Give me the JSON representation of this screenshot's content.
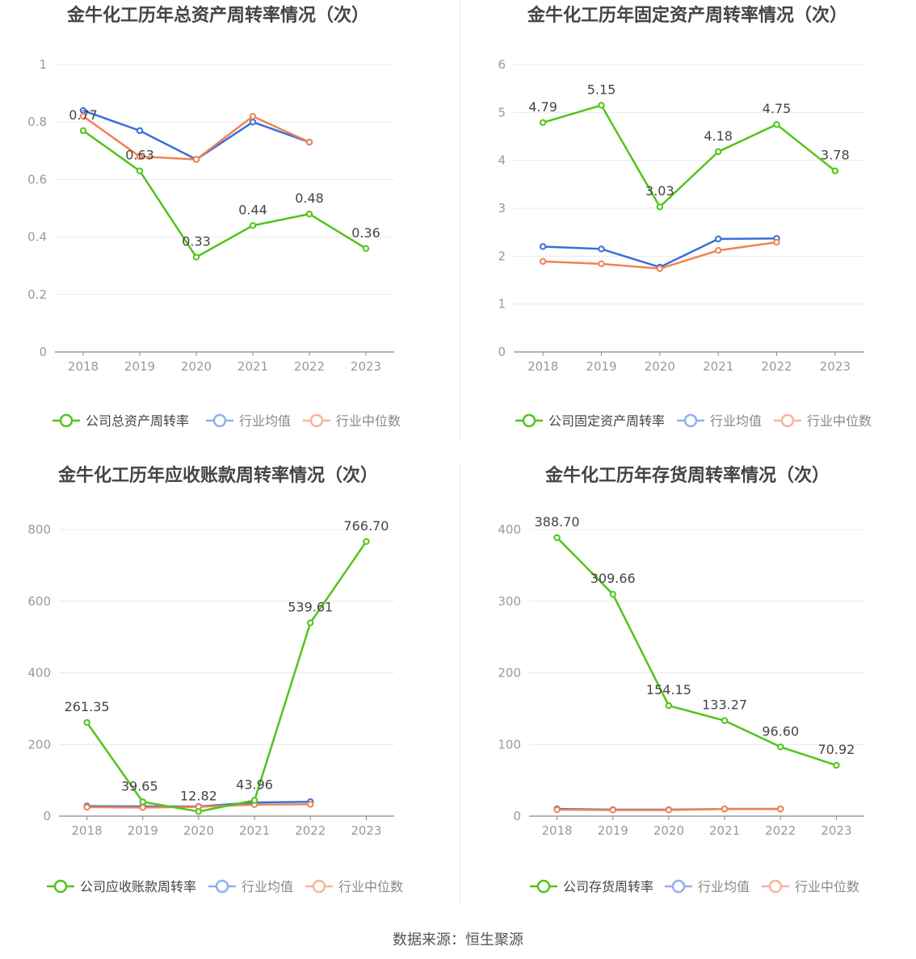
{
  "colors": {
    "company": "#52c41a",
    "industry_avg": "#3a6fd8",
    "industry_median": "#ef8354",
    "legend_avg": "#8fb0ec",
    "legend_median": "#f6b59a",
    "grid": "#e6e8f0",
    "axis": "#888888",
    "tick_text": "#999999",
    "label_text": "#444444",
    "title_text": "#444444"
  },
  "source": "数据来源：恒生聚源",
  "chart_data": [
    {
      "type": "line",
      "title": "金牛化工历年总资产周转率情况（次）",
      "categories": [
        "2018",
        "2019",
        "2020",
        "2021",
        "2022",
        "2023"
      ],
      "ylim": [
        0,
        1
      ],
      "yticks": [
        0,
        0.2,
        0.4,
        0.6,
        0.8,
        1
      ],
      "ytick_labels": [
        "0",
        "0.2",
        "0.4",
        "0.6",
        "0.8",
        "1"
      ],
      "grid": true,
      "legend_position": "bottom",
      "series": [
        {
          "name": "公司总资产周转率",
          "role": "company",
          "values": [
            0.77,
            0.63,
            0.33,
            0.44,
            0.48,
            0.36
          ],
          "labels": [
            "0.77",
            "0.63",
            "0.33",
            "0.44",
            "0.48",
            "0.36"
          ]
        },
        {
          "name": "行业均值",
          "role": "industry_avg",
          "values": [
            0.84,
            0.77,
            0.67,
            0.8,
            0.73,
            null
          ]
        },
        {
          "name": "行业中位数",
          "role": "industry_median",
          "values": [
            0.82,
            0.68,
            0.67,
            0.82,
            0.73,
            null
          ]
        }
      ]
    },
    {
      "type": "line",
      "title": "金牛化工历年固定资产周转率情况（次）",
      "categories": [
        "2018",
        "2019",
        "2020",
        "2021",
        "2022",
        "2023"
      ],
      "ylim": [
        0,
        6
      ],
      "yticks": [
        0,
        1,
        2,
        3,
        4,
        5,
        6
      ],
      "ytick_labels": [
        "0",
        "1",
        "2",
        "3",
        "4",
        "5",
        "6"
      ],
      "grid": true,
      "legend_position": "bottom",
      "series": [
        {
          "name": "公司固定资产周转率",
          "role": "company",
          "values": [
            4.79,
            5.15,
            3.03,
            4.18,
            4.75,
            3.78
          ],
          "labels": [
            "4.79",
            "5.15",
            "3.03",
            "4.18",
            "4.75",
            "3.78"
          ]
        },
        {
          "name": "行业均值",
          "role": "industry_avg",
          "values": [
            2.2,
            2.15,
            1.77,
            2.36,
            2.37,
            null
          ]
        },
        {
          "name": "行业中位数",
          "role": "industry_median",
          "values": [
            1.89,
            1.84,
            1.74,
            2.12,
            2.29,
            null
          ]
        }
      ]
    },
    {
      "type": "line",
      "title": "金牛化工历年应收账款周转率情况（次）",
      "categories": [
        "2018",
        "2019",
        "2020",
        "2021",
        "2022",
        "2023"
      ],
      "ylim": [
        0,
        800
      ],
      "yticks": [
        0,
        200,
        400,
        600,
        800
      ],
      "ytick_labels": [
        "0",
        "200",
        "400",
        "600",
        "800"
      ],
      "grid": true,
      "legend_position": "bottom",
      "series": [
        {
          "name": "公司应收账款周转率",
          "role": "company",
          "values": [
            261.35,
            39.65,
            12.82,
            43.96,
            539.61,
            766.7
          ],
          "labels": [
            "261.35",
            "39.65",
            "12.82",
            "43.96",
            "539.61",
            "766.70"
          ]
        },
        {
          "name": "行业均值",
          "role": "industry_avg",
          "values": [
            28,
            27,
            27,
            38,
            40,
            null
          ]
        },
        {
          "name": "行业中位数",
          "role": "industry_median",
          "values": [
            25,
            24,
            26,
            32,
            33,
            null
          ]
        }
      ]
    },
    {
      "type": "line",
      "title": "金牛化工历年存货周转率情况（次）",
      "categories": [
        "2018",
        "2019",
        "2020",
        "2021",
        "2022",
        "2023"
      ],
      "ylim": [
        0,
        400
      ],
      "yticks": [
        0,
        100,
        200,
        300,
        400
      ],
      "ytick_labels": [
        "0",
        "100",
        "200",
        "300",
        "400"
      ],
      "grid": true,
      "legend_position": "bottom",
      "series": [
        {
          "name": "公司存货周转率",
          "role": "company",
          "values": [
            388.7,
            309.66,
            154.15,
            133.27,
            96.6,
            70.92
          ],
          "labels": [
            "388.70",
            "309.66",
            "154.15",
            "133.27",
            "96.60",
            "70.92"
          ]
        },
        {
          "name": "行业均值",
          "role": "industry_avg",
          "values": [
            10,
            9,
            9,
            10,
            10,
            null
          ]
        },
        {
          "name": "行业中位数",
          "role": "industry_median",
          "values": [
            9,
            8.5,
            8.5,
            10,
            10,
            null
          ]
        }
      ]
    }
  ]
}
